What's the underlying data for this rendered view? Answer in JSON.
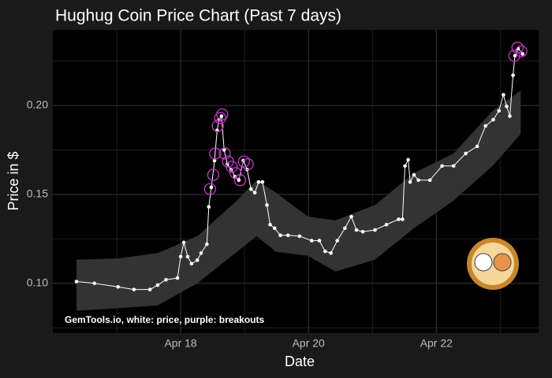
{
  "chart_data": {
    "type": "line",
    "title": "Hughug Coin Price Chart (Past 7 days)",
    "x_label": "Date",
    "y_label": "Price in $",
    "annotation": "GemTools.io, white: price, purple: breakouts",
    "xlim": [
      16.0,
      23.6
    ],
    "ylim": [
      0.072,
      0.2425
    ],
    "xticks": [
      {
        "value": 18,
        "label": "Apr 18"
      },
      {
        "value": 20,
        "label": "Apr 20"
      },
      {
        "value": 22,
        "label": "Apr 22"
      }
    ],
    "yticks": [
      {
        "value": 0.1,
        "label": "0.10"
      },
      {
        "value": 0.15,
        "label": "0.15"
      },
      {
        "value": 0.2,
        "label": "0.20"
      }
    ],
    "grid": true,
    "series": [
      {
        "name": "price",
        "color": "#ffffff",
        "x": [
          16.37,
          16.65,
          17.02,
          17.27,
          17.52,
          17.64,
          17.77,
          17.95,
          18.0,
          18.05,
          18.11,
          18.17,
          18.26,
          18.32,
          18.41,
          18.44,
          18.48,
          18.53,
          18.57,
          18.6,
          18.64,
          18.68,
          18.73,
          18.79,
          18.85,
          18.91,
          18.98,
          19.04,
          19.1,
          19.16,
          19.22,
          19.28,
          19.35,
          19.4,
          19.47,
          19.56,
          19.68,
          19.86,
          20.05,
          20.17,
          20.26,
          20.35,
          20.45,
          20.57,
          20.67,
          20.75,
          20.85,
          21.04,
          21.22,
          21.41,
          21.47,
          21.51,
          21.56,
          21.59,
          21.65,
          21.72,
          21.9,
          22.09,
          22.27,
          22.46,
          22.64,
          22.77,
          22.89,
          22.98,
          23.05,
          23.1,
          23.15,
          23.2,
          23.23,
          23.28,
          23.35
        ],
        "values": [
          0.101,
          0.1,
          0.098,
          0.0965,
          0.0965,
          0.099,
          0.102,
          0.103,
          0.115,
          0.123,
          0.115,
          0.111,
          0.113,
          0.117,
          0.122,
          0.143,
          0.154,
          0.169,
          0.186,
          0.192,
          0.194,
          0.175,
          0.167,
          0.164,
          0.16,
          0.158,
          0.169,
          0.164,
          0.153,
          0.151,
          0.157,
          0.157,
          0.144,
          0.133,
          0.131,
          0.127,
          0.127,
          0.1265,
          0.124,
          0.124,
          0.118,
          0.117,
          0.124,
          0.131,
          0.1375,
          0.13,
          0.129,
          0.13,
          0.133,
          0.136,
          0.136,
          0.166,
          0.1695,
          0.157,
          0.161,
          0.158,
          0.158,
          0.166,
          0.166,
          0.173,
          0.177,
          0.1885,
          0.192,
          0.197,
          0.206,
          0.1995,
          0.194,
          0.217,
          0.228,
          0.232,
          0.229
        ]
      },
      {
        "name": "breakouts",
        "color": "#cc33cc",
        "x": [
          18.46,
          18.51,
          18.54,
          18.58,
          18.62,
          18.65,
          18.69,
          18.74,
          18.8,
          18.86,
          18.93,
          18.99,
          19.05,
          23.22,
          23.27,
          23.33
        ],
        "values": [
          0.153,
          0.161,
          0.173,
          0.1885,
          0.193,
          0.195,
          0.173,
          0.1685,
          0.1655,
          0.162,
          0.158,
          0.1685,
          0.167,
          0.228,
          0.2325,
          0.2305
        ]
      }
    ],
    "band": {
      "color": "#333333",
      "x": [
        16.37,
        17.02,
        17.64,
        18.26,
        18.88,
        19.19,
        19.49,
        19.99,
        20.42,
        21.04,
        21.65,
        22.27,
        22.89,
        23.32
      ],
      "lower": [
        0.0845,
        0.086,
        0.0876,
        0.1,
        0.1177,
        0.1265,
        0.1177,
        0.1155,
        0.1066,
        0.1133,
        0.131,
        0.1465,
        0.1664,
        0.184
      ],
      "upper": [
        0.1133,
        0.114,
        0.117,
        0.1265,
        0.1465,
        0.158,
        0.151,
        0.1376,
        0.1354,
        0.144,
        0.162,
        0.173,
        0.1973,
        0.2084
      ]
    }
  }
}
